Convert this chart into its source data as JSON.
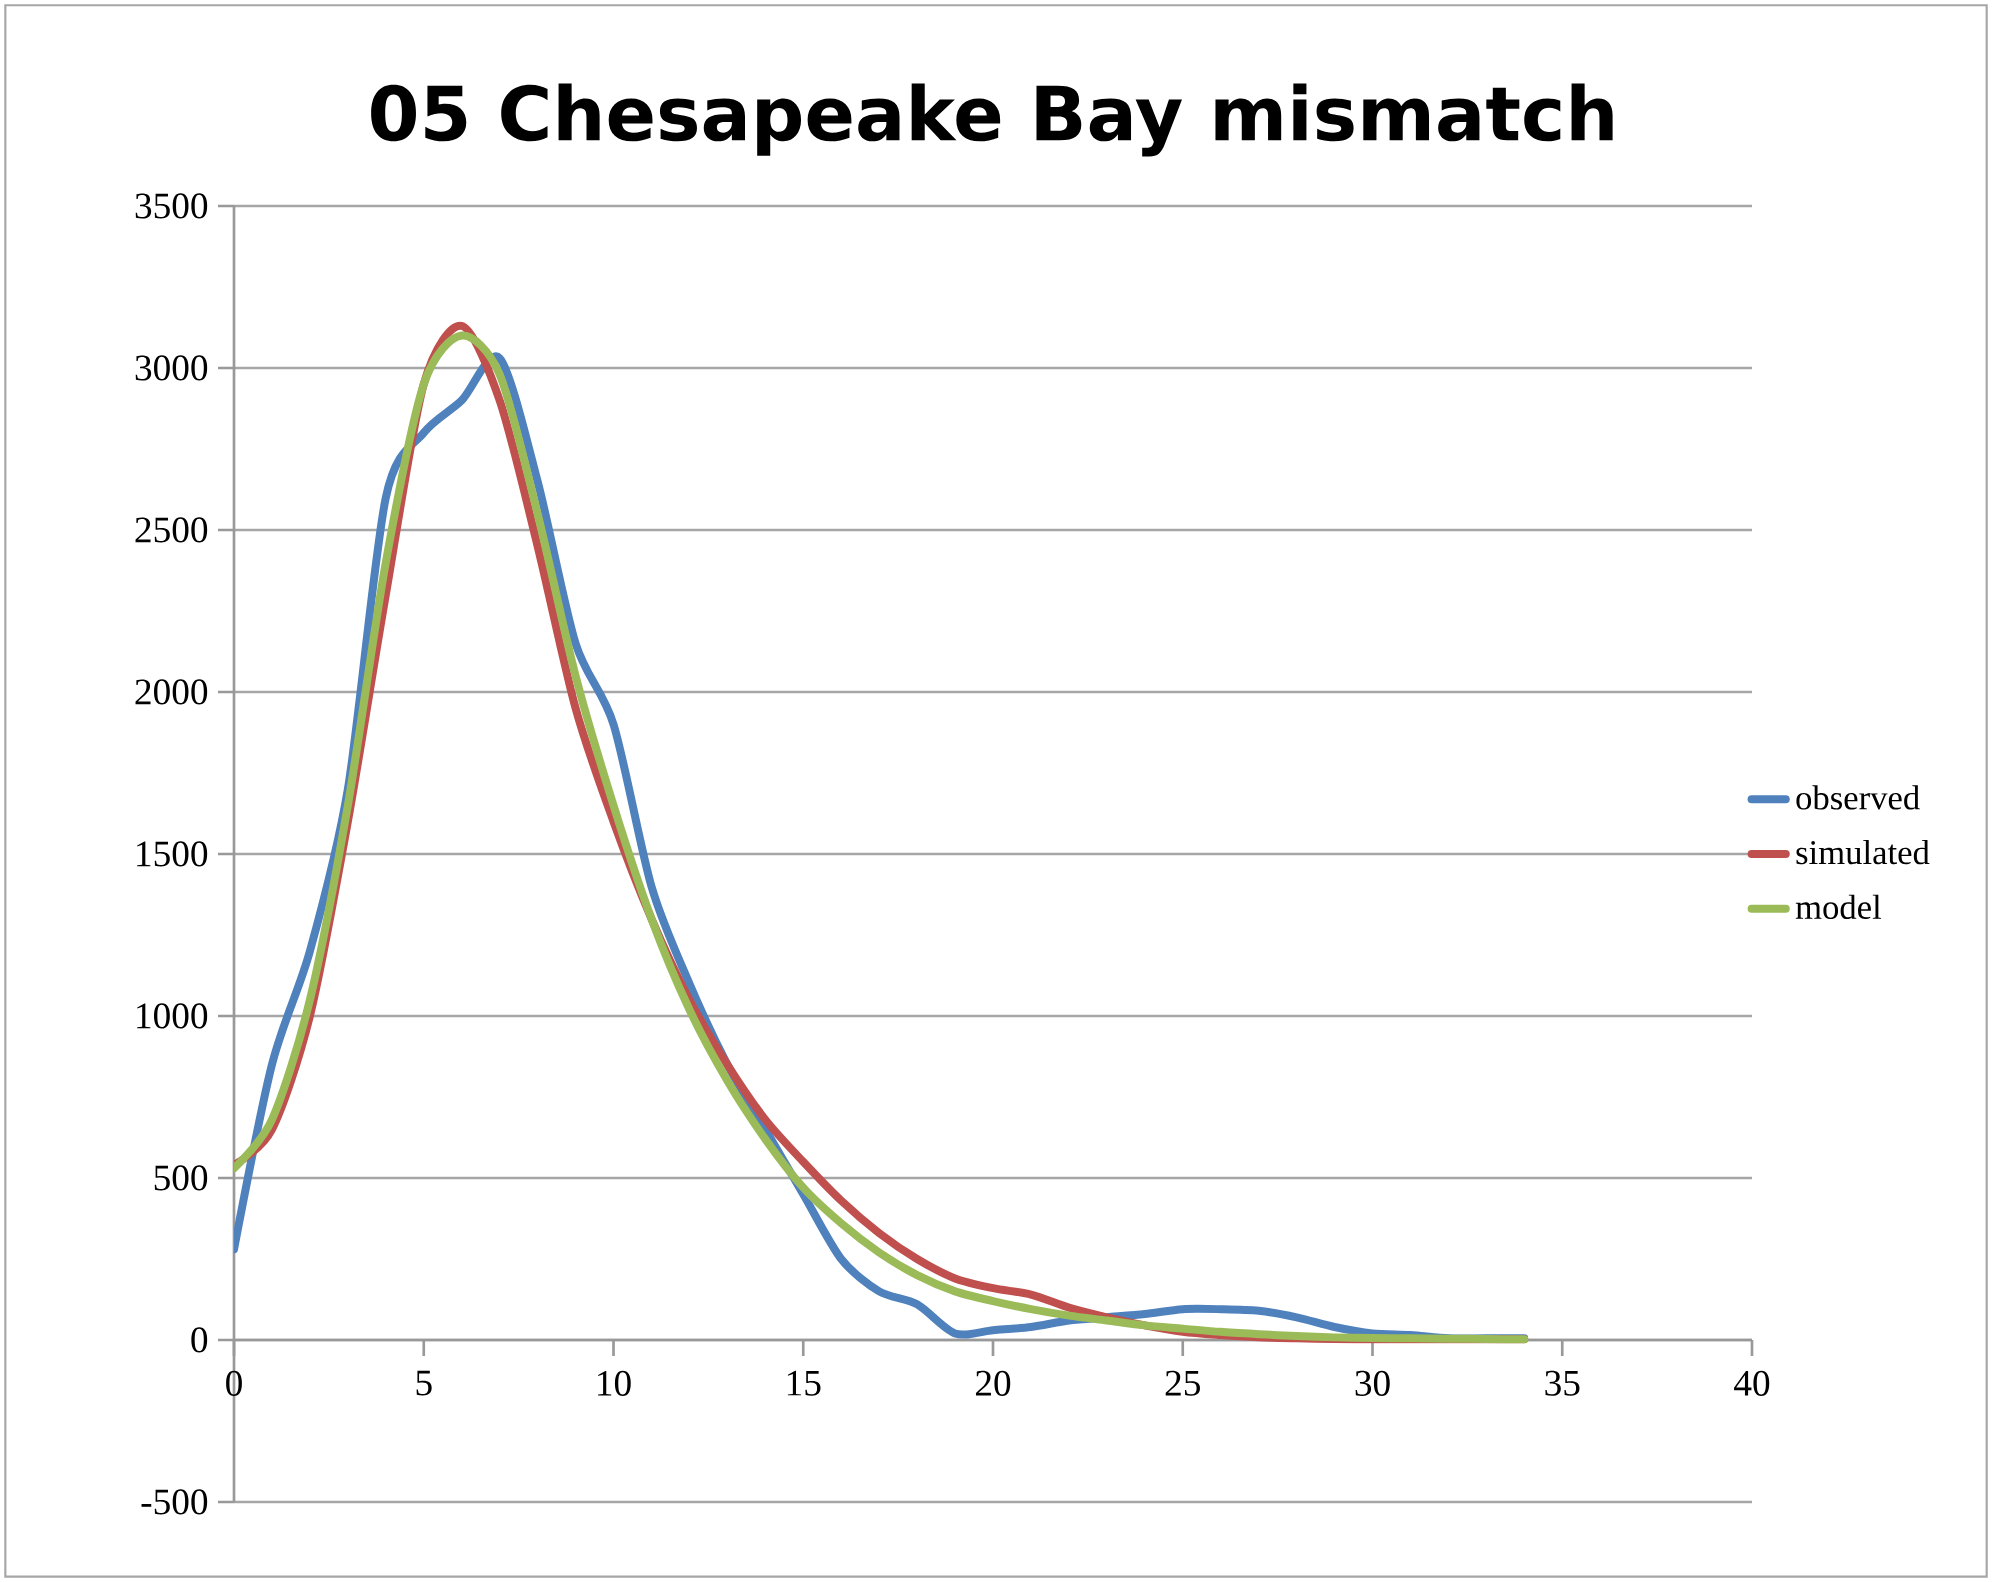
{
  "chart_data": {
    "type": "line",
    "title": "05 Chesapeake Bay mismatch",
    "x": [
      0,
      1,
      2,
      3,
      4,
      5,
      6,
      7,
      8,
      9,
      10,
      11,
      12,
      13,
      14,
      15,
      16,
      17,
      18,
      19,
      20,
      21,
      22,
      23,
      24,
      25,
      26,
      27,
      28,
      29,
      30,
      31,
      32,
      33,
      34
    ],
    "series": [
      {
        "name": "observed",
        "color": "#4f81bd",
        "values": [
          280,
          850,
          1200,
          1700,
          2600,
          2800,
          2900,
          3030,
          2650,
          2150,
          1900,
          1400,
          1100,
          850,
          650,
          450,
          250,
          150,
          110,
          20,
          30,
          40,
          60,
          70,
          80,
          95,
          95,
          90,
          70,
          40,
          20,
          15,
          5,
          5,
          5
        ]
      },
      {
        "name": "simulated",
        "color": "#c0504d",
        "values": [
          540,
          650,
          1000,
          1600,
          2300,
          2950,
          3130,
          2900,
          2450,
          1950,
          1600,
          1300,
          1050,
          850,
          680,
          550,
          430,
          330,
          250,
          190,
          160,
          140,
          100,
          70,
          45,
          25,
          15,
          8,
          5,
          3,
          2,
          2,
          2,
          2,
          2
        ]
      },
      {
        "name": "model",
        "color": "#9bbb59",
        "values": [
          530,
          680,
          1050,
          1650,
          2400,
          2950,
          3100,
          2980,
          2550,
          2050,
          1650,
          1300,
          1020,
          800,
          620,
          470,
          360,
          270,
          200,
          150,
          120,
          95,
          75,
          60,
          45,
          35,
          25,
          18,
          12,
          8,
          6,
          5,
          4,
          3,
          2
        ]
      }
    ],
    "xlim": [
      0,
      40
    ],
    "xticks": [
      0,
      5,
      10,
      15,
      20,
      25,
      30,
      35,
      40
    ],
    "ylim": [
      -500,
      3500
    ],
    "yticks": [
      -500,
      0,
      500,
      1000,
      1500,
      2000,
      2500,
      3000,
      3500
    ],
    "grid": "y",
    "legend": "right",
    "marker": "none",
    "line_style": "solid"
  }
}
